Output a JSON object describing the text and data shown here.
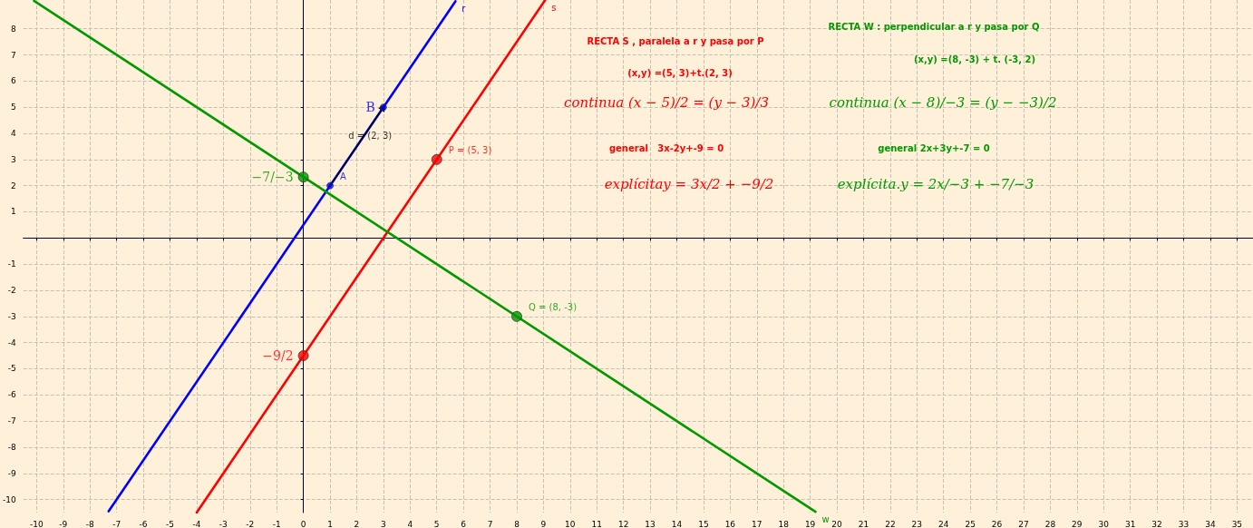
{
  "chart_data": {
    "type": "line",
    "xlim": [
      -10.5,
      35.6
    ],
    "ylim": [
      -10.5,
      9.1
    ],
    "xticks": [
      -10,
      -9,
      -8,
      -7,
      -6,
      -5,
      -4,
      -3,
      -2,
      -1,
      0,
      1,
      2,
      3,
      4,
      5,
      6,
      7,
      8,
      9,
      10,
      11,
      12,
      13,
      14,
      15,
      16,
      17,
      18,
      19,
      20,
      21,
      22,
      23,
      24,
      25,
      26,
      27,
      28,
      29,
      30,
      31,
      32,
      33,
      34,
      35
    ],
    "yticks": [
      -10,
      -9,
      -8,
      -7,
      -6,
      -5,
      -4,
      -3,
      -2,
      -1,
      {
        "value": 0,
        "label": null
      },
      1,
      2,
      3,
      4,
      5,
      6,
      7,
      8
    ],
    "grid": true,
    "legend": false,
    "line_style": "solid",
    "series": [
      {
        "name": "r",
        "color": "#0000ff",
        "x": [
          -7.3,
          5.7
        ],
        "values": [
          -10.45,
          9.05
        ]
      },
      {
        "name": "s",
        "color": "#ff0000",
        "x": [
          -4,
          9.06
        ],
        "values": [
          -10.5,
          9.09
        ]
      },
      {
        "name": "w",
        "color": "#009900",
        "x": [
          -10.1,
          19.2
        ],
        "values": [
          9.07,
          -10.47
        ]
      },
      {
        "type": "line",
        "color": "#000000",
        "x": [
          1,
          3
        ],
        "values": [
          2,
          5
        ],
        "marker": "triangle"
      },
      {
        "type": "scatter",
        "color": "#0000ff",
        "x": [
          1,
          3
        ],
        "values": [
          2,
          5
        ],
        "value_labels": [
          "A",
          "B"
        ],
        "marker": "circle"
      },
      {
        "type": "scatter",
        "color": "#ff0000",
        "x": [
          5,
          0
        ],
        "values": [
          3,
          -4.5
        ],
        "value_labels": [
          "P = (5, 3)",
          "−9/2"
        ],
        "marker": "circle"
      },
      {
        "type": "scatter",
        "color": "#009900",
        "x": [
          8,
          0
        ],
        "values": [
          -3,
          2.33
        ],
        "value_labels": [
          "Q = (8, -3)",
          "−7/−3"
        ],
        "marker": "circle"
      }
    ],
    "annotations": [
      {
        "text": "d = (2, 3)",
        "x": 2.5,
        "y": 3.9
      },
      "RECTA S , paralela a r y pasa por P",
      "(x,y) =(5, 3)+t.(2, 3)",
      "continua (x − 5)/2 = (y − 3)/3",
      "general   3x-2y+-9 = 0",
      "explícitay = 3x/2 + −9/2",
      "RECTA W : perpendicular a r y pasa por Q",
      "(x,y) =(8, -3) + t. (-3, 2)",
      "continua (x − 8)/−3 = (y − −3)/2",
      "general 2x+3y+-7 = 0",
      "explícita.y = 2x/−3 + −7/−3"
    ]
  }
}
